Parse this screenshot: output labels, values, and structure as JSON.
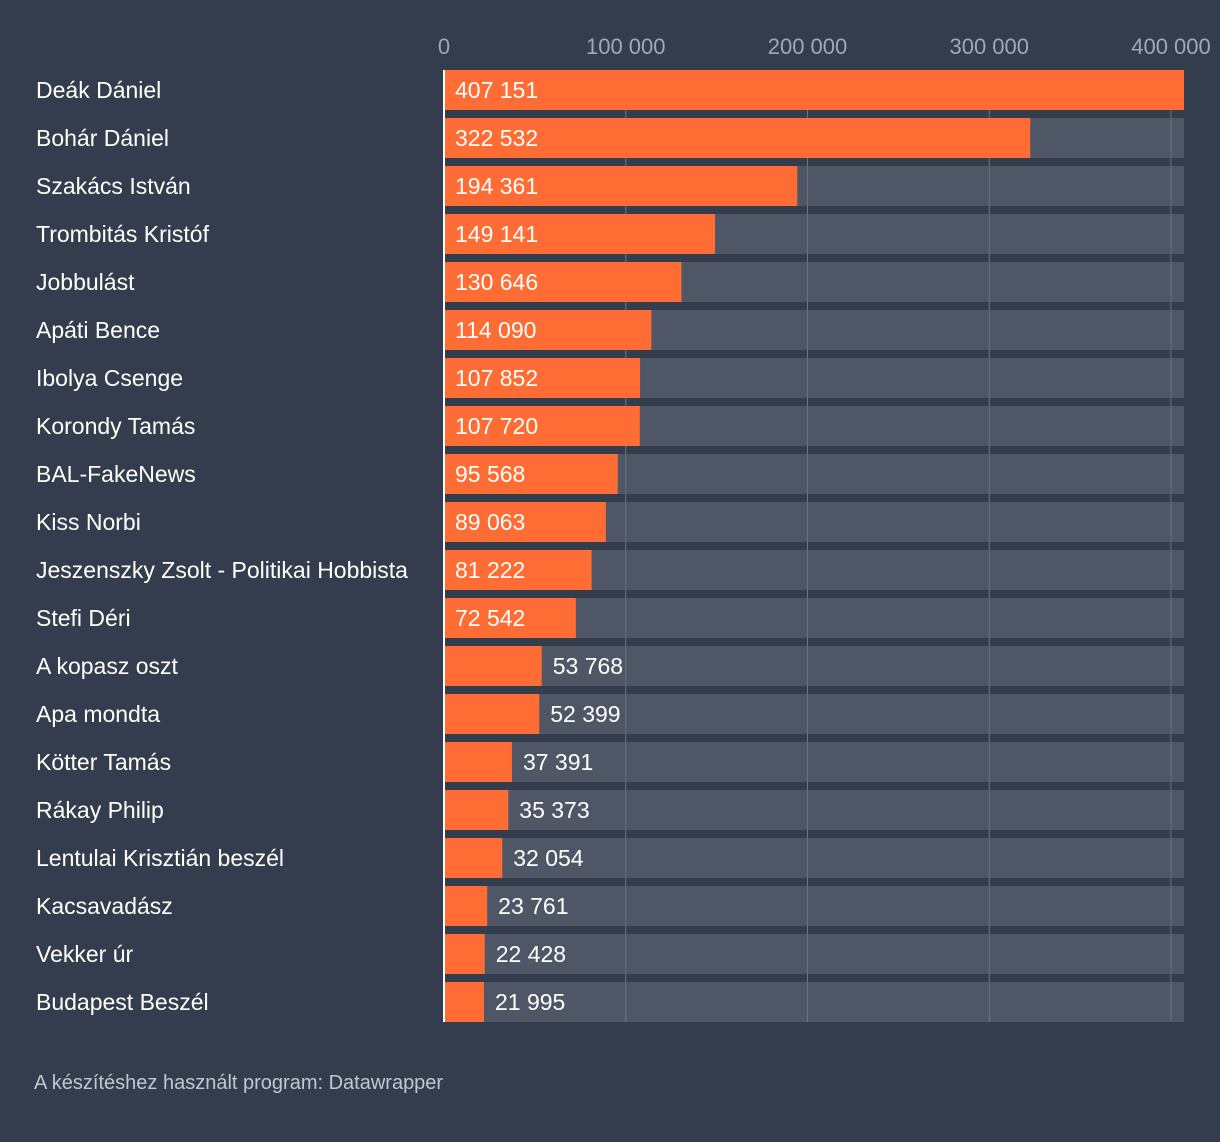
{
  "chart_data": {
    "type": "bar",
    "orientation": "horizontal",
    "title": "",
    "xlabel": "",
    "ylabel": "",
    "categories": [
      "Deák Dániel",
      "Bohár Dániel",
      "Szakács István",
      "Trombitás Kristóf",
      "Jobbulást",
      "Apáti Bence",
      "Ibolya Csenge",
      "Korondy Tamás",
      "BAL-FakeNews",
      "Kiss Norbi",
      "Jeszenszky Zsolt - Politikai Hobbista",
      "Stefi Déri",
      "A kopasz oszt",
      "Apa mondta",
      "Kötter Tamás",
      "Rákay Philip",
      "Lentulai Krisztián beszél",
      "Kacsavadász",
      "Vekker úr",
      "Budapest Beszél"
    ],
    "values": [
      407151,
      322532,
      194361,
      149141,
      130646,
      114090,
      107852,
      107720,
      95568,
      89063,
      81222,
      72542,
      53768,
      52399,
      37391,
      35373,
      32054,
      23761,
      22428,
      21995
    ],
    "value_labels": [
      "407 151",
      "322 532",
      "194 361",
      "149 141",
      "130 646",
      "114 090",
      "107 852",
      "107 720",
      "95 568",
      "89 063",
      "81 222",
      "72 542",
      "53 768",
      "52 399",
      "37 391",
      "35 373",
      "32 054",
      "23 761",
      "22 428",
      "21 995"
    ],
    "xlim": [
      0,
      407151
    ],
    "ticks": [
      0,
      100000,
      200000,
      300000,
      400000
    ],
    "tick_labels": [
      "0",
      "100 000",
      "200 000",
      "300 000",
      "400 000"
    ],
    "grid": true,
    "legend": "none"
  },
  "colors": {
    "background": "#343d4d",
    "bar": "#ff6d34",
    "track": "#4f5766",
    "grid": "#6b7280",
    "tick_text": "#a2a8b2"
  },
  "footer": {
    "source": "A készítéshez használt program: Datawrapper"
  }
}
